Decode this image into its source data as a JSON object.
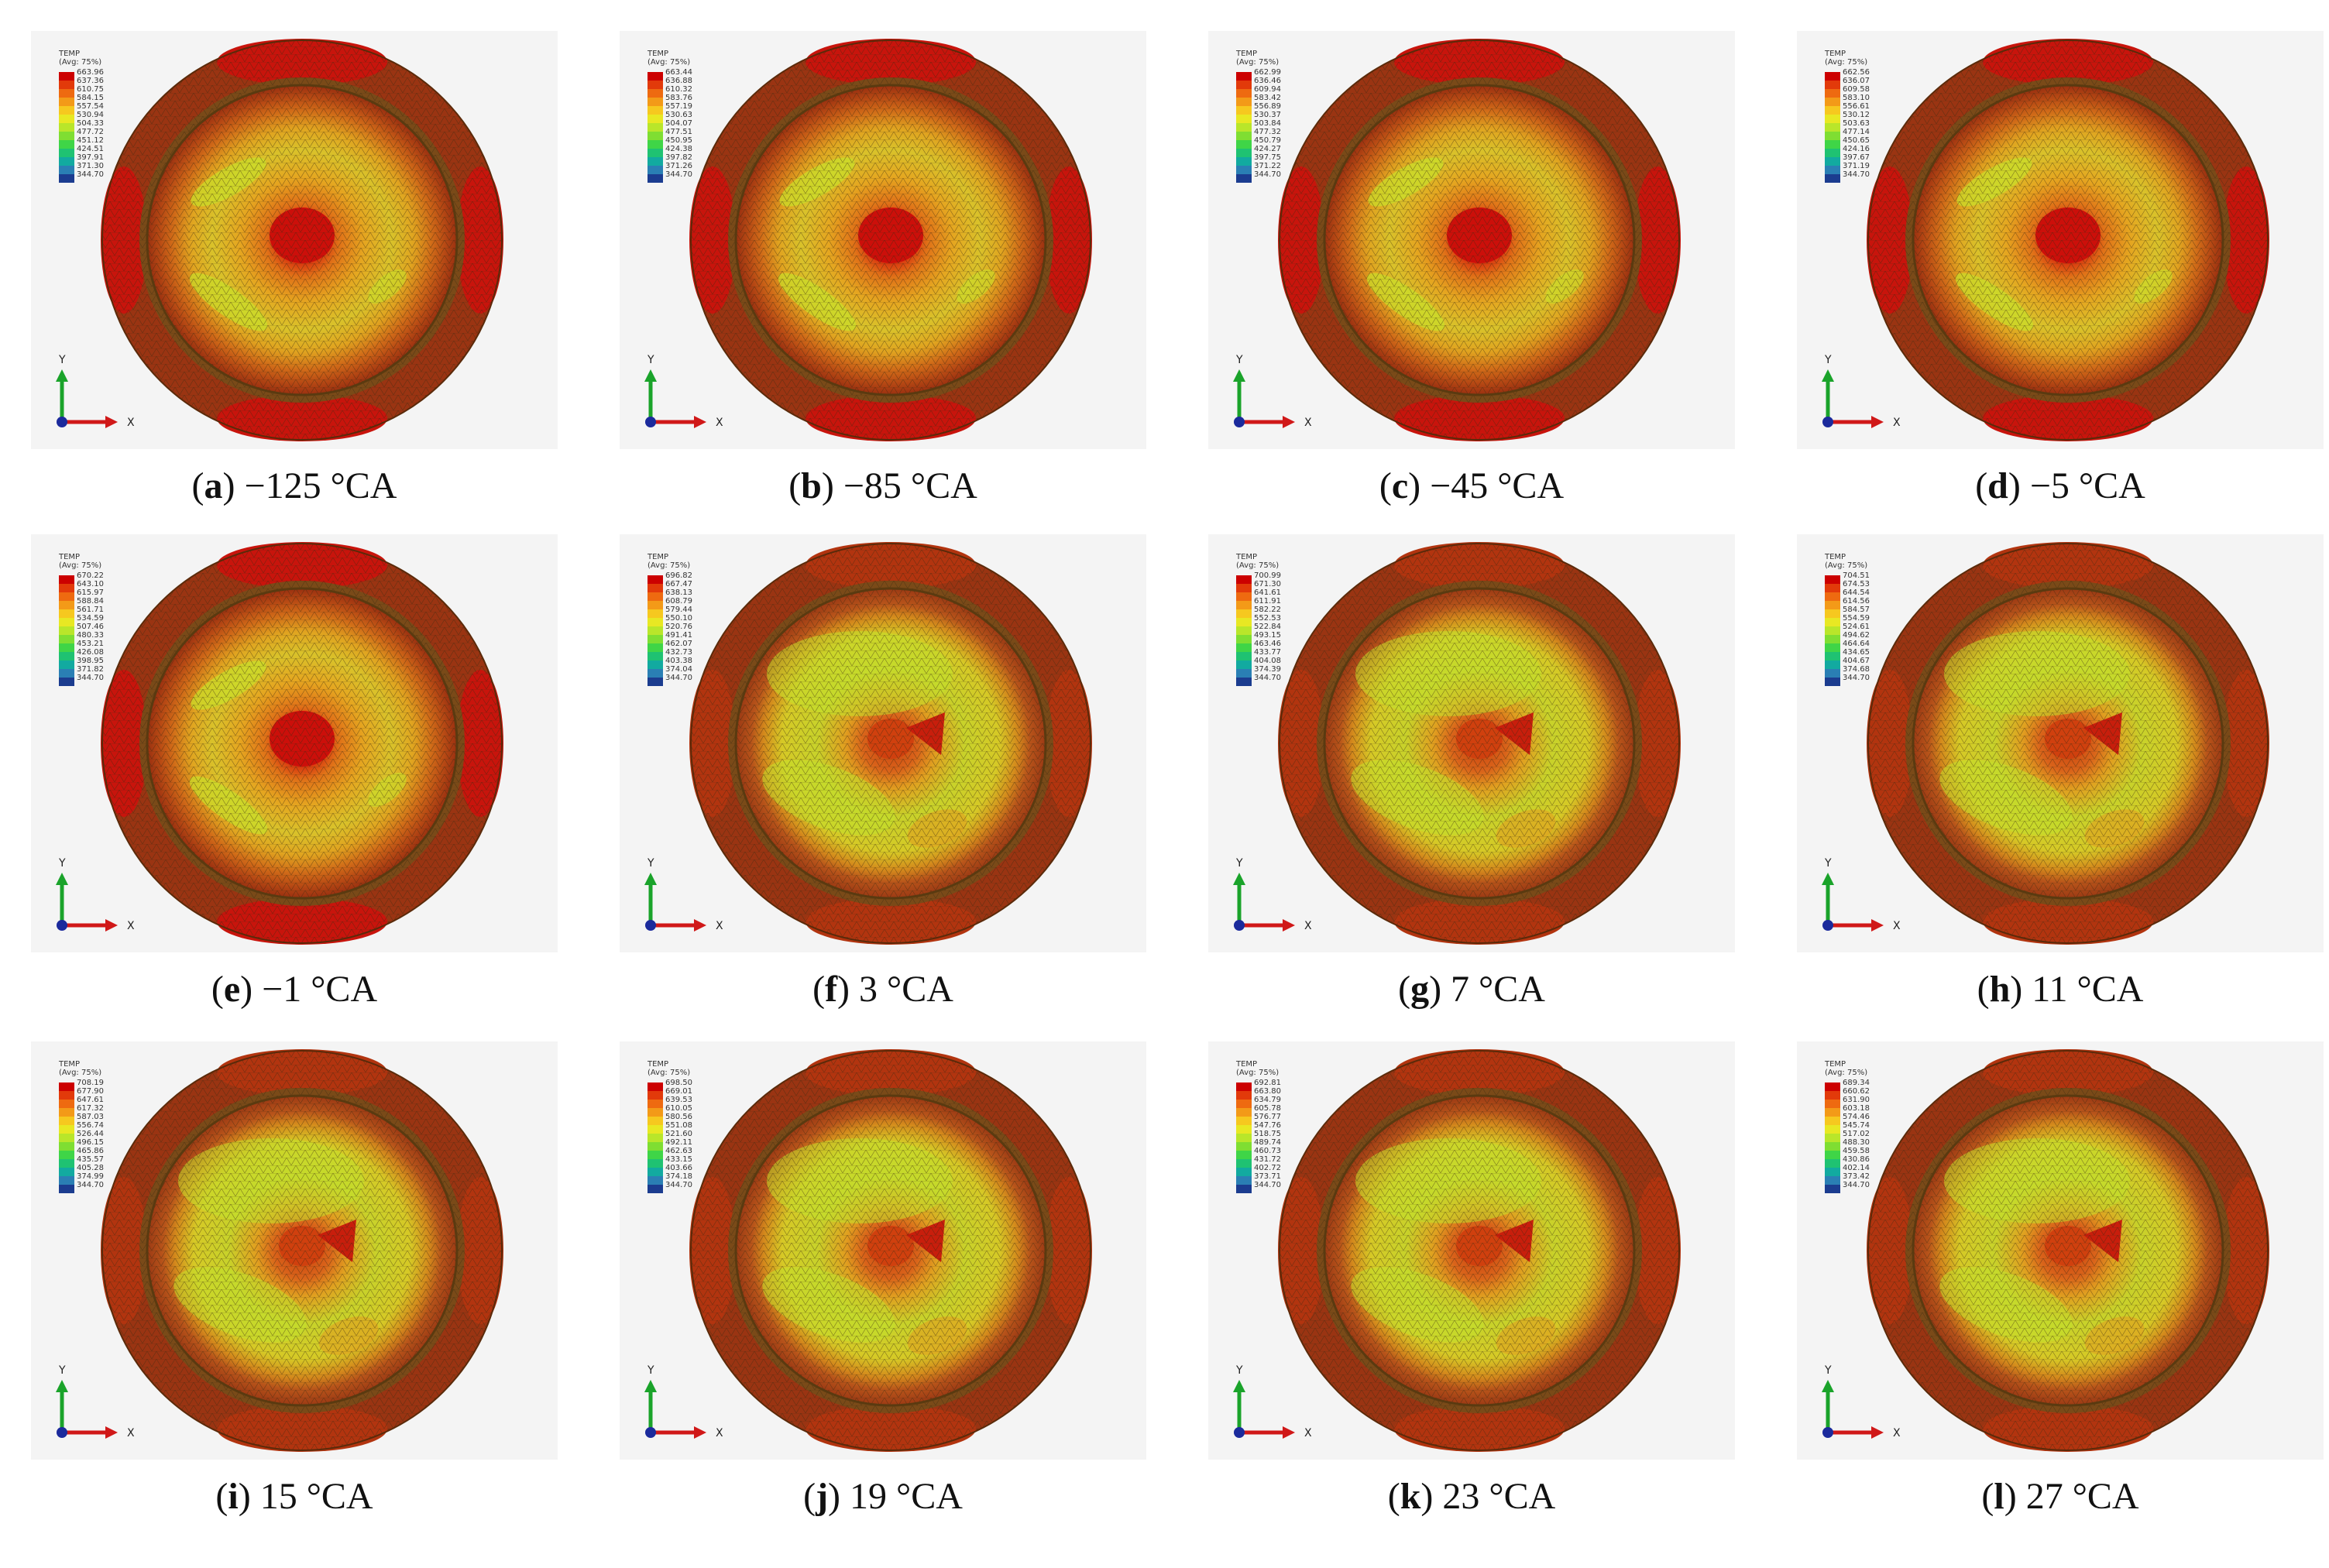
{
  "legend_title": "TEMP",
  "legend_avg": "(Avg: 75%)",
  "axis_x": "X",
  "axis_y": "Y",
  "colors": [
    "#cc0000",
    "#e23a0a",
    "#ee6a10",
    "#f39a18",
    "#f6c81f",
    "#e8e823",
    "#b9e62a",
    "#7fde32",
    "#3fd547",
    "#1fc272",
    "#12aaa0",
    "#2a7fb4",
    "#1b3c8f"
  ],
  "panels": [
    {
      "letter": "a",
      "angle": "−125 °CA",
      "values": [
        "663.96",
        "637.36",
        "610.75",
        "584.15",
        "557.54",
        "530.94",
        "504.33",
        "477.72",
        "451.12",
        "424.51",
        "397.91",
        "371.30",
        "344.70"
      ]
    },
    {
      "letter": "b",
      "angle": "−85 °CA",
      "values": [
        "663.44",
        "636.88",
        "610.32",
        "583.76",
        "557.19",
        "530.63",
        "504.07",
        "477.51",
        "450.95",
        "424.38",
        "397.82",
        "371.26",
        "344.70"
      ]
    },
    {
      "letter": "c",
      "angle": "−45 °CA",
      "values": [
        "662.99",
        "636.46",
        "609.94",
        "583.42",
        "556.89",
        "530.37",
        "503.84",
        "477.32",
        "450.79",
        "424.27",
        "397.75",
        "371.22",
        "344.70"
      ]
    },
    {
      "letter": "d",
      "angle": "−5 °CA",
      "values": [
        "662.56",
        "636.07",
        "609.58",
        "583.10",
        "556.61",
        "530.12",
        "503.63",
        "477.14",
        "450.65",
        "424.16",
        "397.67",
        "371.19",
        "344.70"
      ]
    },
    {
      "letter": "e",
      "angle": "−1 °CA",
      "values": [
        "670.22",
        "643.10",
        "615.97",
        "588.84",
        "561.71",
        "534.59",
        "507.46",
        "480.33",
        "453.21",
        "426.08",
        "398.95",
        "371.82",
        "344.70"
      ]
    },
    {
      "letter": "f",
      "angle": "3 °CA",
      "values": [
        "696.82",
        "667.47",
        "638.13",
        "608.79",
        "579.44",
        "550.10",
        "520.76",
        "491.41",
        "462.07",
        "432.73",
        "403.38",
        "374.04",
        "344.70"
      ]
    },
    {
      "letter": "g",
      "angle": "7 °CA",
      "values": [
        "700.99",
        "671.30",
        "641.61",
        "611.91",
        "582.22",
        "552.53",
        "522.84",
        "493.15",
        "463.46",
        "433.77",
        "404.08",
        "374.39",
        "344.70"
      ]
    },
    {
      "letter": "h",
      "angle": "11 °CA",
      "values": [
        "704.51",
        "674.53",
        "644.54",
        "614.56",
        "584.57",
        "554.59",
        "524.61",
        "494.62",
        "464.64",
        "434.65",
        "404.67",
        "374.68",
        "344.70"
      ]
    },
    {
      "letter": "i",
      "angle": "15 °CA",
      "values": [
        "708.19",
        "677.90",
        "647.61",
        "617.32",
        "587.03",
        "556.74",
        "526.44",
        "496.15",
        "465.86",
        "435.57",
        "405.28",
        "374.99",
        "344.70"
      ]
    },
    {
      "letter": "j",
      "angle": "19 °CA",
      "values": [
        "698.50",
        "669.01",
        "639.53",
        "610.05",
        "580.56",
        "551.08",
        "521.60",
        "492.11",
        "462.63",
        "433.15",
        "403.66",
        "374.18",
        "344.70"
      ]
    },
    {
      "letter": "k",
      "angle": "23 °CA",
      "values": [
        "692.81",
        "663.80",
        "634.79",
        "605.78",
        "576.77",
        "547.76",
        "518.75",
        "489.74",
        "460.73",
        "431.72",
        "402.72",
        "373.71",
        "344.70"
      ]
    },
    {
      "letter": "l",
      "angle": "27 °CA",
      "values": [
        "689.34",
        "660.62",
        "631.90",
        "603.18",
        "574.46",
        "545.74",
        "517.02",
        "488.30",
        "459.58",
        "430.86",
        "402.14",
        "373.42",
        "344.70"
      ]
    }
  ]
}
